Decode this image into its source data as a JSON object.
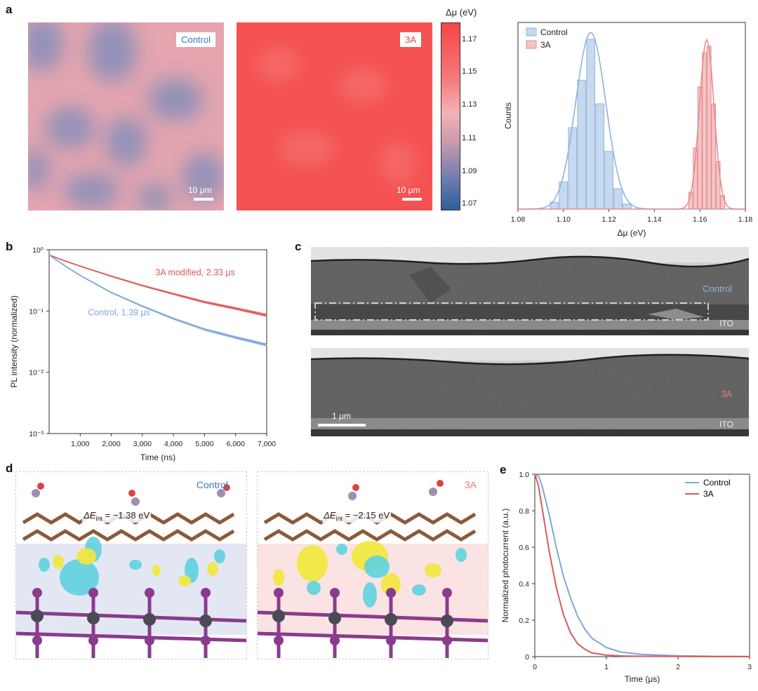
{
  "panel_a": {
    "letter": "a",
    "map_control_label": "Control",
    "map_3a_label": "3A",
    "scalebar_control": "10 μm",
    "scalebar_3a": "10 μm",
    "colorbar": {
      "title": "Δμ (eV)",
      "ticks": [
        "1.17",
        "1.15",
        "1.13",
        "1.11",
        "1.09",
        "1.07"
      ],
      "colors": {
        "high": "#f64545",
        "mid": "#f6a3a8",
        "low": "#2d5f9a"
      }
    }
  },
  "panel_b_meta": {
    "letter": "b"
  },
  "panel_c": {
    "letter": "c",
    "label_control": "Control",
    "label_ito_top": "ITO",
    "label_3a": "3A",
    "label_ito_bottom": "ITO",
    "scalebar": "1 μm"
  },
  "panel_d": {
    "letter": "d",
    "label_control": "Control",
    "label_3a": "3A",
    "energy_control_prefix": "ΔE",
    "energy_control_sub": "int",
    "energy_control_value": " = −1.38 eV",
    "energy_3a_prefix": "ΔE",
    "energy_3a_sub": "int",
    "energy_3a_value": " = −2.15 eV"
  },
  "panel_e_meta": {
    "letter": "e"
  },
  "chart_data": [
    {
      "id": "a-hist",
      "type": "bar",
      "title": "",
      "xlabel": "Δμ (eV)",
      "ylabel": "Counts",
      "xlim": [
        1.08,
        1.18
      ],
      "xticks": [
        "1.08",
        "1.10",
        "1.12",
        "1.14",
        "1.16",
        "1.18"
      ],
      "legend": "top-left",
      "series": [
        {
          "name": "Control",
          "color": "#8fb3de",
          "bins_x": [
            1.096,
            1.1,
            1.104,
            1.108,
            1.112,
            1.116,
            1.12,
            1.124,
            1.128
          ],
          "counts": [
            4,
            16,
            48,
            76,
            100,
            62,
            34,
            12,
            3
          ],
          "fit_mu": 1.112,
          "fit_sigma": 0.0066
        },
        {
          "name": "3A",
          "color": "#e78b8d",
          "bins_x": [
            1.156,
            1.158,
            1.16,
            1.162,
            1.164,
            1.166,
            1.168,
            1.17
          ],
          "counts": [
            10,
            36,
            72,
            92,
            96,
            62,
            28,
            8
          ],
          "fit_mu": 1.163,
          "fit_sigma": 0.0032
        }
      ]
    },
    {
      "id": "b-decay",
      "type": "line",
      "xlabel": "Time (ns)",
      "ylabel": "PL intensity (normalized)",
      "xlim": [
        0,
        7000
      ],
      "ylim_log10": [
        -3,
        0
      ],
      "xticks": [
        "1,000",
        "2,000",
        "3,000",
        "4,000",
        "5,000",
        "6,000",
        "7,000"
      ],
      "yticks": [
        "10⁰",
        "10⁻¹",
        "10⁻²",
        "10⁻³"
      ],
      "series": [
        {
          "name": "3A modified, 2.33 µs",
          "color": "#d95b5b",
          "x": [
            0,
            500,
            1000,
            2000,
            3000,
            4000,
            5000,
            6000,
            7000
          ],
          "y": [
            0.82,
            0.66,
            0.54,
            0.37,
            0.26,
            0.19,
            0.14,
            0.11,
            0.085
          ]
        },
        {
          "name": "Control, 1.39 µs",
          "color": "#7ea8d8",
          "x": [
            0,
            500,
            1000,
            2000,
            3000,
            4000,
            5000,
            6000,
            7000
          ],
          "y": [
            0.82,
            0.55,
            0.38,
            0.2,
            0.12,
            0.075,
            0.05,
            0.037,
            0.028
          ]
        }
      ]
    },
    {
      "id": "e-photocurrent",
      "type": "line",
      "xlabel": "Time (μs)",
      "ylabel": "Normalized photocurrent (a.u.)",
      "xlim": [
        0,
        3
      ],
      "ylim": [
        0,
        1.0
      ],
      "xticks": [
        "0",
        "1",
        "2",
        "3"
      ],
      "yticks": [
        "0",
        "0.2",
        "0.4",
        "0.6",
        "0.8",
        "1.0"
      ],
      "legend": "top-right",
      "series": [
        {
          "name": "Control",
          "color": "#7ea8d8",
          "x": [
            0,
            0.05,
            0.1,
            0.2,
            0.3,
            0.4,
            0.5,
            0.6,
            0.7,
            0.8,
            1.0,
            1.2,
            1.5,
            2.0,
            2.5,
            3.0
          ],
          "y": [
            1.0,
            0.99,
            0.94,
            0.78,
            0.6,
            0.44,
            0.32,
            0.22,
            0.15,
            0.1,
            0.05,
            0.025,
            0.012,
            0.005,
            0.002,
            0.001
          ]
        },
        {
          "name": "3A",
          "color": "#d95b5b",
          "x": [
            0,
            0.05,
            0.1,
            0.2,
            0.3,
            0.4,
            0.5,
            0.6,
            0.7,
            0.8,
            1.0,
            1.2,
            1.5,
            2.0,
            2.5,
            3.0
          ],
          "y": [
            1.0,
            0.94,
            0.82,
            0.58,
            0.38,
            0.23,
            0.13,
            0.07,
            0.04,
            0.02,
            0.008,
            0.004,
            0.002,
            0.001,
            0.0,
            0.0
          ]
        }
      ]
    }
  ]
}
